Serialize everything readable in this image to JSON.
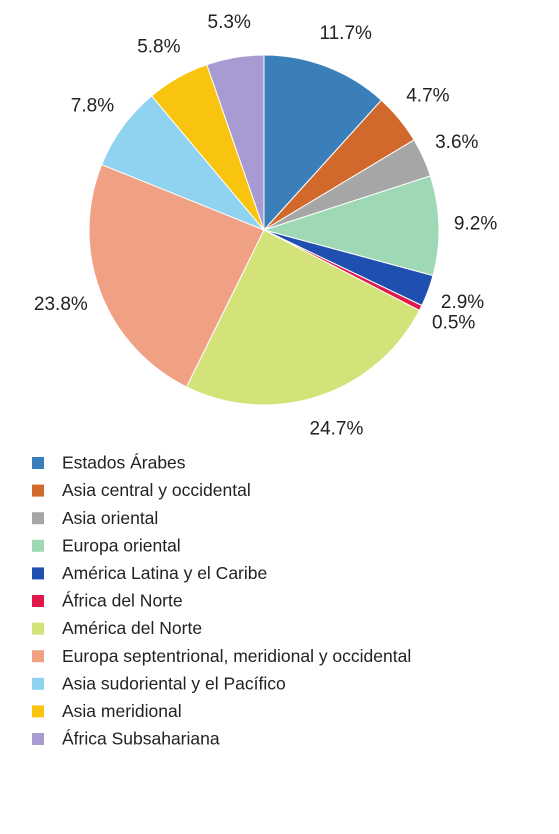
{
  "chart_data": {
    "type": "pie",
    "categories": [
      "Estados Árabes",
      "Asia central y occidental",
      "Asia oriental",
      "Europa oriental",
      "América Latina y el Caribe",
      "África del Norte",
      "América del Norte",
      "Europa septentrional, meridional y occidental",
      "Asia sudoriental y el Pacífico",
      "Asia meridional",
      "África Subsahariana"
    ],
    "values": [
      11.7,
      4.7,
      3.6,
      9.2,
      2.9,
      0.5,
      24.7,
      23.8,
      7.8,
      5.8,
      5.3
    ],
    "value_labels": [
      "11.7%",
      "4.7%",
      "3.6%",
      "9.2%",
      "2.9%",
      "0.5%",
      "24.7%",
      "23.8%",
      "7.8%",
      "5.8%",
      "5.3%"
    ],
    "colors": [
      "#3a7fba",
      "#d2692c",
      "#a6a6a6",
      "#9fd8b4",
      "#1f4fb0",
      "#e0194a",
      "#d4e27a",
      "#f0a184",
      "#8fd3f0",
      "#f9c40f",
      "#a89bd1"
    ],
    "legend": "bottom"
  }
}
